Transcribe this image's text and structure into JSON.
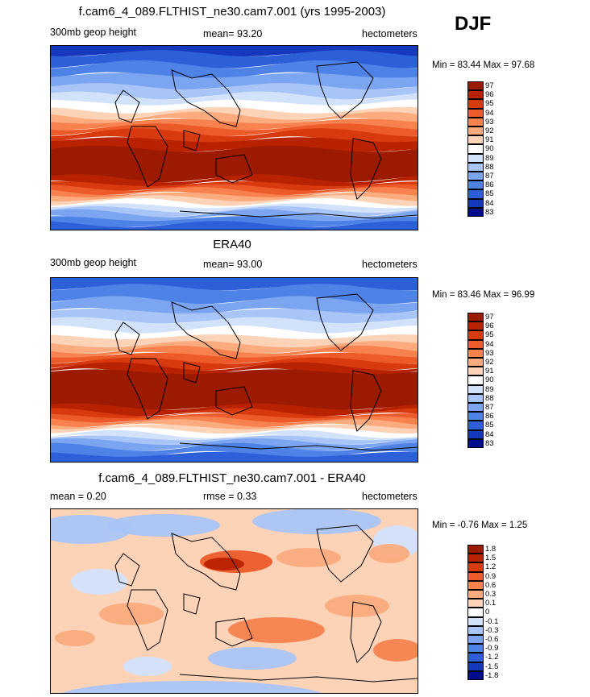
{
  "season": "DJF",
  "chart_data": [
    {
      "type": "heatmap",
      "title": "f.cam6_4_089.FLTHIST_ne30.cam7.001 (yrs 1995-2003)",
      "left_label": "300mb geop height",
      "center_label": "mean=  93.20",
      "right_label": "hectometers",
      "minmax_label": "Min =  83.44 Max =  97.68",
      "min": 83.44,
      "max": 97.68,
      "mean": 93.2,
      "colorbar": {
        "levels": [
          "97",
          "96",
          "95",
          "94",
          "93",
          "92",
          "91",
          "90",
          "89",
          "88",
          "87",
          "86",
          "85",
          "84",
          "83"
        ],
        "colors": [
          "#9b1a00",
          "#b82200",
          "#d83a0f",
          "#ed5b2a",
          "#f7824f",
          "#fbab7e",
          "#fdd3b8",
          "#ffffff",
          "#d3e2fb",
          "#a9c5f7",
          "#7ba5f0",
          "#4f82e6",
          "#2c5fd8",
          "#1638bc",
          "#020c8a"
        ]
      }
    },
    {
      "type": "heatmap",
      "title": "ERA40",
      "left_label": "300mb geop height",
      "center_label": "mean=  93.00",
      "right_label": "hectometers",
      "minmax_label": "Min =  83.46 Max =  96.99",
      "min": 83.46,
      "max": 96.99,
      "mean": 93.0,
      "colorbar": {
        "levels": [
          "97",
          "96",
          "95",
          "94",
          "93",
          "92",
          "91",
          "90",
          "89",
          "88",
          "87",
          "86",
          "85",
          "84",
          "83"
        ],
        "colors": [
          "#9b1a00",
          "#b82200",
          "#d83a0f",
          "#ed5b2a",
          "#f7824f",
          "#fbab7e",
          "#fdd3b8",
          "#ffffff",
          "#d3e2fb",
          "#a9c5f7",
          "#7ba5f0",
          "#4f82e6",
          "#2c5fd8",
          "#1638bc",
          "#020c8a"
        ]
      }
    },
    {
      "type": "heatmap",
      "title": "f.cam6_4_089.FLTHIST_ne30.cam7.001 - ERA40",
      "left_label": "mean =   0.20",
      "center_label": "rmse =   0.33",
      "right_label": "hectometers",
      "minmax_label": "Min =  -0.76 Max =   1.25",
      "min": -0.76,
      "max": 1.25,
      "mean": 0.2,
      "rmse": 0.33,
      "colorbar": {
        "levels": [
          "1.8",
          "1.5",
          "1.2",
          "0.9",
          "0.6",
          "0.3",
          "0.1",
          "0",
          "-0.1",
          "-0.3",
          "-0.6",
          "-0.9",
          "-1.2",
          "-1.5",
          "-1.8"
        ],
        "colors": [
          "#9b1a00",
          "#b82200",
          "#d83a0f",
          "#ed5b2a",
          "#f7824f",
          "#fbab7e",
          "#fdd3b8",
          "#ffffff",
          "#d3e2fb",
          "#a9c5f7",
          "#7ba5f0",
          "#4f82e6",
          "#2c5fd8",
          "#1638bc",
          "#020c8a"
        ]
      }
    }
  ]
}
